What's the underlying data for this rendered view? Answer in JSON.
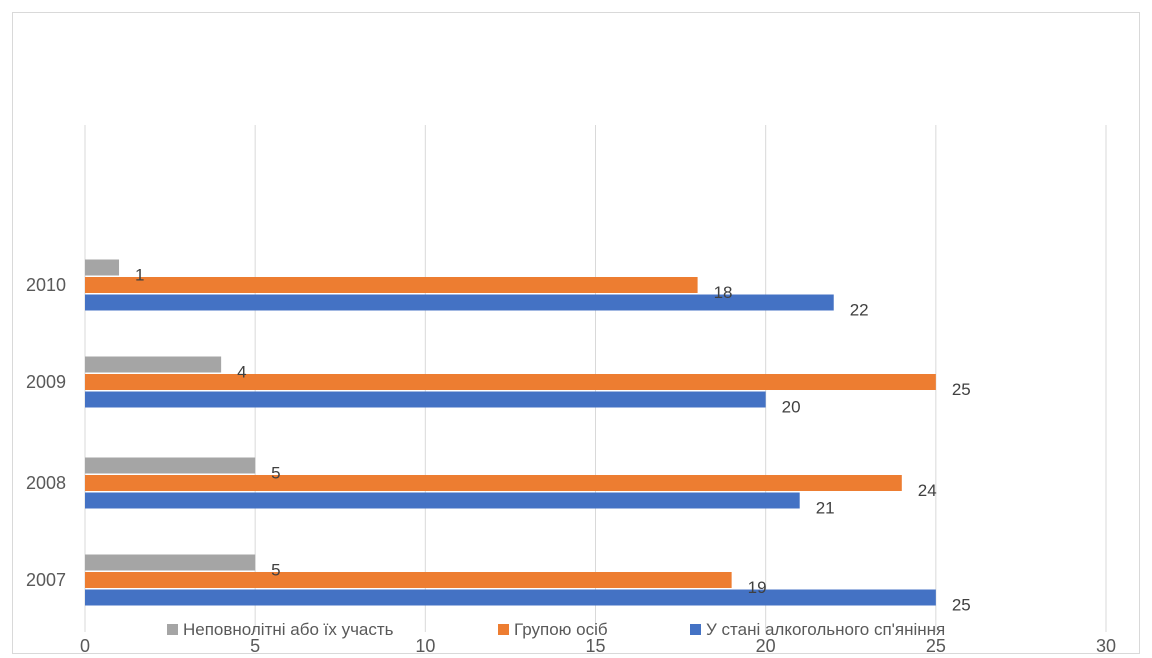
{
  "chart_data": {
    "type": "bar",
    "orientation": "horizontal",
    "categories": [
      "2007",
      "2008",
      "2009",
      "2010"
    ],
    "series": [
      {
        "name": "Неповнолітні або їх участь",
        "color": "#a5a5a5",
        "values": [
          5,
          5,
          4,
          1
        ]
      },
      {
        "name": "Групою осіб",
        "color": "#ed7d31",
        "values": [
          19,
          24,
          25,
          18
        ]
      },
      {
        "name": "У стані алкогольного сп'яніння",
        "color": "#4472c4",
        "values": [
          25,
          21,
          20,
          22
        ]
      }
    ],
    "xlim": [
      0,
      30
    ],
    "x_ticks": [
      0,
      5,
      10,
      15,
      20,
      25,
      30
    ],
    "grid": "vertical",
    "legend_position": "bottom",
    "data_labels": true
  }
}
